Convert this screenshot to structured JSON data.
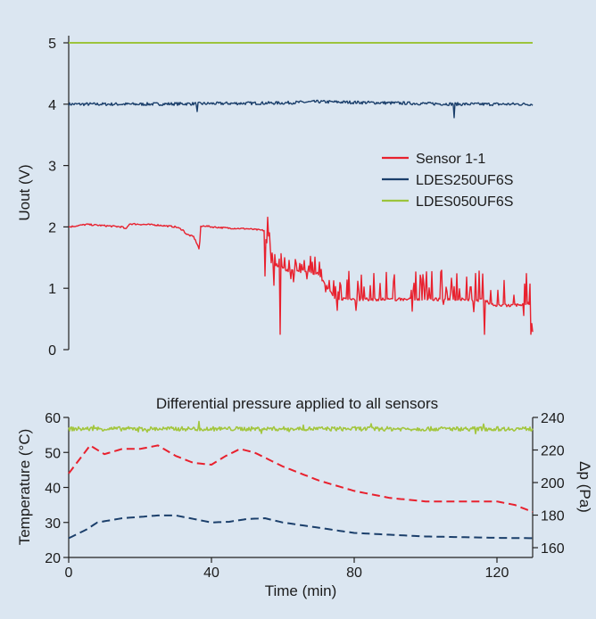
{
  "chart_data": [
    {
      "type": "line",
      "title": "",
      "xlabel": "",
      "ylabel": "Uout (V)",
      "xlim": [
        0,
        130
      ],
      "ylim": [
        0,
        5
      ],
      "yticks": [
        0,
        1,
        2,
        3,
        4,
        5
      ],
      "grid": false,
      "legend": "center-right",
      "series": [
        {
          "name": "Sensor 1-1",
          "color": "#e8212e",
          "noise": "low-then-spiky",
          "x": [
            0,
            5,
            15,
            16,
            17,
            25,
            30,
            32,
            33,
            35,
            36,
            36.6,
            37,
            38,
            40,
            45,
            50,
            55,
            56,
            56.5,
            57,
            58,
            59,
            60,
            61,
            62,
            65,
            70,
            72,
            74,
            75,
            80,
            90,
            100,
            110,
            117,
            118,
            119,
            120,
            125,
            129,
            130
          ],
          "y": [
            2.0,
            2.04,
            2.0,
            1.96,
            2.05,
            2.03,
            2.0,
            1.95,
            1.88,
            1.84,
            1.72,
            1.63,
            2.0,
            2.02,
            2.0,
            1.98,
            1.97,
            1.94,
            1.85,
            1.45,
            1.4,
            1.38,
            1.36,
            1.35,
            1.3,
            1.28,
            1.28,
            1.24,
            1.05,
            0.88,
            0.82,
            0.82,
            0.82,
            0.82,
            0.82,
            0.8,
            0.75,
            0.72,
            0.72,
            0.72,
            0.76,
            0.28
          ],
          "spikes": [
            [
              55,
              1.2
            ],
            [
              57.5,
              1.05
            ],
            [
              59.3,
              0.25
            ],
            [
              116.6,
              0.25
            ],
            [
              129.6,
              0.25
            ]
          ]
        },
        {
          "name": "LDES250UF6S",
          "color": "#1b3f6b",
          "noise": "small",
          "x": [
            0,
            20,
            40,
            60,
            70,
            80,
            90,
            100,
            110,
            120,
            130
          ],
          "y": [
            4.0,
            4.0,
            4.01,
            4.02,
            4.04,
            4.03,
            4.02,
            4.01,
            4.0,
            4.0,
            4.0
          ],
          "spikes": [
            [
              36,
              3.88
            ],
            [
              108,
              3.78
            ]
          ]
        },
        {
          "name": "LDES050UF6S",
          "color": "#9cc43c",
          "noise": "none",
          "x": [
            0,
            130
          ],
          "y": [
            5.0,
            5.0
          ],
          "spikes": []
        }
      ]
    },
    {
      "type": "line",
      "title": "Differential pressure applied to all sensors",
      "xlabel": "Time (min)",
      "ylabel": "Temperature (°C)",
      "y2label": "Δp (Pa)",
      "xlim": [
        0,
        130
      ],
      "xticks": [
        0,
        40,
        80,
        120
      ],
      "ylim": [
        20,
        60
      ],
      "yticks": [
        20,
        30,
        40,
        50,
        60
      ],
      "y2lim": [
        154,
        240
      ],
      "y2ticks": [
        160,
        180,
        200,
        220,
        240
      ],
      "grid": false,
      "series": [
        {
          "axis": "y2",
          "color": "#a3c63e",
          "style": "solid",
          "noise": "pressure",
          "x": [
            0,
            130
          ],
          "y": [
            233,
            233
          ]
        },
        {
          "axis": "y",
          "color": "#e8212e",
          "style": "dashed",
          "x": [
            0,
            3,
            6,
            10,
            15,
            20,
            25,
            30,
            35,
            40,
            44,
            48,
            52,
            56,
            60,
            70,
            80,
            90,
            100,
            110,
            120,
            125,
            130
          ],
          "y": [
            44,
            48,
            52,
            49.5,
            51,
            51,
            52,
            49,
            47,
            46.5,
            49,
            51,
            50,
            48,
            46,
            42,
            39,
            37,
            36,
            36,
            36,
            35,
            33
          ]
        },
        {
          "axis": "y",
          "color": "#1b3f6b",
          "style": "dashed",
          "x": [
            0,
            5,
            8,
            15,
            25,
            30,
            35,
            40,
            45,
            50,
            55,
            60,
            70,
            80,
            90,
            100,
            110,
            120,
            130
          ],
          "y": [
            25.5,
            28,
            30,
            31.2,
            32,
            32,
            31,
            30,
            30.2,
            31,
            31.2,
            30,
            28.5,
            27,
            26.5,
            26,
            25.8,
            25.6,
            25.5
          ]
        }
      ]
    }
  ]
}
